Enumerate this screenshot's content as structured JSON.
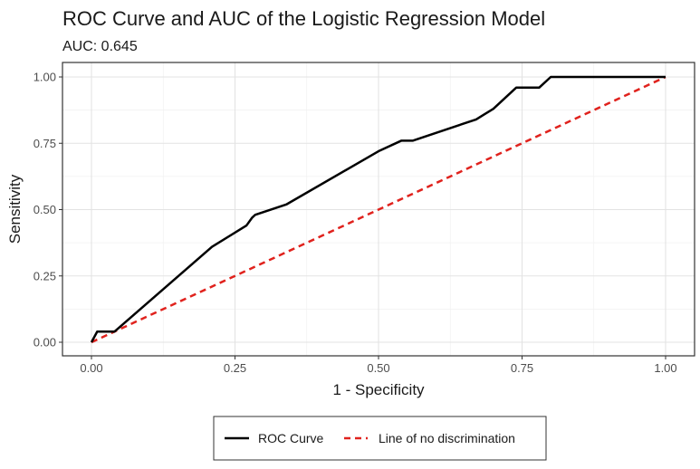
{
  "chart_data": {
    "type": "line",
    "title": "ROC Curve and AUC of the Logistic Regression Model",
    "subtitle": "AUC: 0.645",
    "xlabel": "1 - Specificity",
    "ylabel": "Sensitivity",
    "xlim": [
      0,
      1
    ],
    "ylim": [
      0,
      1
    ],
    "x_ticks": [
      0,
      0.25,
      0.5,
      0.75,
      1
    ],
    "x_tick_labels": [
      "0.00",
      "0.25",
      "0.50",
      "0.75",
      "1.00"
    ],
    "y_ticks": [
      0,
      0.25,
      0.5,
      0.75,
      1
    ],
    "y_tick_labels": [
      "0.00",
      "0.25",
      "0.50",
      "0.75",
      "1.00"
    ],
    "grid": true,
    "legend_position": "bottom",
    "series": [
      {
        "name": "ROC Curve",
        "color": "#000000",
        "dash": "solid",
        "x": [
          0,
          0.005,
          0.01,
          0.04,
          0.21,
          0.27,
          0.28,
          0.285,
          0.34,
          0.5,
          0.54,
          0.56,
          0.67,
          0.7,
          0.72,
          0.74,
          0.78,
          0.8,
          1.0
        ],
        "y": [
          0,
          0.02,
          0.04,
          0.04,
          0.36,
          0.44,
          0.47,
          0.48,
          0.52,
          0.72,
          0.76,
          0.76,
          0.84,
          0.88,
          0.92,
          0.96,
          0.96,
          1.0,
          1.0
        ]
      },
      {
        "name": "Line of no discrimination",
        "color": "#e0221d",
        "dash": "dashed",
        "x": [
          0,
          1
        ],
        "y": [
          0,
          1
        ]
      }
    ]
  }
}
